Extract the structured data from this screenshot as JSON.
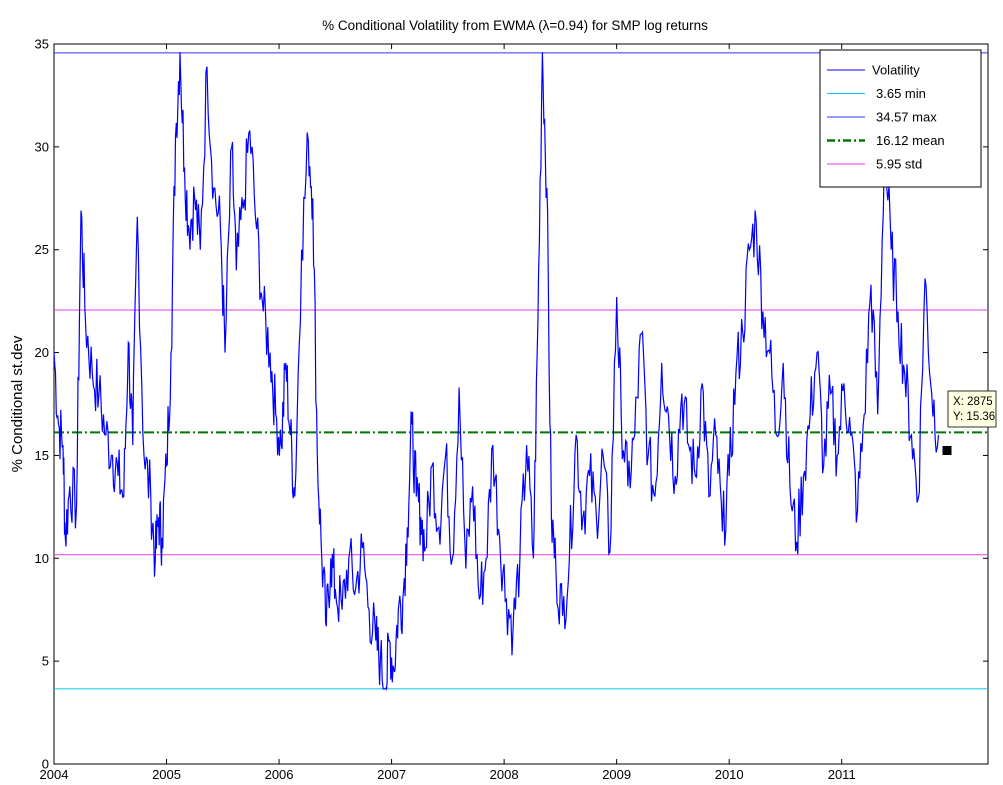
{
  "chart_data": {
    "type": "line",
    "title": "% Conditional Volatility from  EWMA (λ=0.94)  for SMP log returns",
    "xlabel": "",
    "ylabel": "%  Conditional st.dev",
    "x_range": [
      2004.0,
      2012.3
    ],
    "ylim": [
      0,
      35
    ],
    "x_ticks": [
      "2004",
      "2005",
      "2006",
      "2007",
      "2008",
      "2009",
      "2010",
      "2011"
    ],
    "y_ticks": [
      "0",
      "5",
      "10",
      "15",
      "20",
      "25",
      "30",
      "35"
    ],
    "grid": false,
    "legend_position": "top-right",
    "series": [
      {
        "name": "Volatility",
        "color": "#0000ff",
        "style": "solid",
        "x": [
          2004.0,
          2004.04,
          2004.08,
          2004.1,
          2004.14,
          2004.2,
          2004.24,
          2004.28,
          2004.34,
          2004.4,
          2004.46,
          2004.52,
          2004.57,
          2004.62,
          2004.66,
          2004.7,
          2004.74,
          2004.8,
          2004.86,
          2004.9,
          2004.93,
          2004.96,
          2005.0,
          2005.04,
          2005.08,
          2005.12,
          2005.16,
          2005.2,
          2005.25,
          2005.3,
          2005.36,
          2005.42,
          2005.48,
          2005.52,
          2005.58,
          2005.62,
          2005.68,
          2005.74,
          2005.8,
          2005.86,
          2005.92,
          2005.97,
          2006.02,
          2006.06,
          2006.1,
          2006.14,
          2006.2,
          2006.26,
          2006.3,
          2006.34,
          2006.38,
          2006.42,
          2006.46,
          2006.5,
          2006.56,
          2006.62,
          2006.68,
          2006.74,
          2006.8,
          2006.86,
          2006.9,
          2006.95,
          2006.98,
          2007.02,
          2007.06,
          2007.1,
          2007.14,
          2007.18,
          2007.22,
          2007.26,
          2007.3,
          2007.36,
          2007.42,
          2007.48,
          2007.54,
          2007.6,
          2007.66,
          2007.72,
          2007.78,
          2007.84,
          2007.9,
          2007.96,
          2008.02,
          2008.08,
          2008.14,
          2008.2,
          2008.26,
          2008.3,
          2008.34,
          2008.38,
          2008.42,
          2008.46,
          2008.52,
          2008.58,
          2008.64,
          2008.7,
          2008.76,
          2008.82,
          2008.88,
          2008.94,
          2009.0,
          2009.04,
          2009.1,
          2009.16,
          2009.22,
          2009.28,
          2009.34,
          2009.4,
          2009.46,
          2009.52,
          2009.58,
          2009.64,
          2009.7,
          2009.76,
          2009.82,
          2009.88,
          2009.94,
          2010.0,
          2010.06,
          2010.12,
          2010.18,
          2010.24,
          2010.3,
          2010.36,
          2010.42,
          2010.48,
          2010.54,
          2010.6,
          2010.66,
          2010.72,
          2010.78,
          2010.84,
          2010.9,
          2010.96,
          2011.02,
          2011.08,
          2011.14,
          2011.2,
          2011.26,
          2011.32,
          2011.38,
          2011.44,
          2011.5,
          2011.56,
          2011.62,
          2011.68,
          2011.74,
          2011.8,
          2011.86
        ],
        "y": [
          20.0,
          16.5,
          15.5,
          11.0,
          13.5,
          12.5,
          26.9,
          21.5,
          19.0,
          18.0,
          16.0,
          15.0,
          14.0,
          13.0,
          20.5,
          15.5,
          26.6,
          15.0,
          13.0,
          9.9,
          12.0,
          11.0,
          14.5,
          20.0,
          30.5,
          34.6,
          29.0,
          26.0,
          27.5,
          25.0,
          33.9,
          28.0,
          26.0,
          20.0,
          30.0,
          24.0,
          27.0,
          30.8,
          26.0,
          22.0,
          20.0,
          17.0,
          15.5,
          19.5,
          16.0,
          13.0,
          25.0,
          30.3,
          27.5,
          15.0,
          10.0,
          6.7,
          10.0,
          8.5,
          7.5,
          10.0,
          8.5,
          10.5,
          7.5,
          6.0,
          5.0,
          3.7,
          6.0,
          4.6,
          7.5,
          8.0,
          11.5,
          16.5,
          13.0,
          12.0,
          10.5,
          14.5,
          11.5,
          15.0,
          10.0,
          18.3,
          9.5,
          13.5,
          8.0,
          10.0,
          15.5,
          11.0,
          8.0,
          6.6,
          10.0,
          15.5,
          10.0,
          21.5,
          34.6,
          28.0,
          12.0,
          9.5,
          7.2,
          10.0,
          16.0,
          12.0,
          14.0,
          12.0,
          15.0,
          10.3,
          22.7,
          17.0,
          13.5,
          16.0,
          20.9,
          15.0,
          13.0,
          19.5,
          17.0,
          14.0,
          18.0,
          15.5,
          14.0,
          18.5,
          13.0,
          16.0,
          11.3,
          14.0,
          19.0,
          21.0,
          25.0,
          26.4,
          22.0,
          20.0,
          16.0,
          19.5,
          13.5,
          10.8,
          14.0,
          17.0,
          20.0,
          14.5,
          18.0,
          15.0,
          18.5,
          16.0,
          12.3,
          17.0,
          23.3,
          17.0,
          30.0,
          25.0,
          22.0,
          19.0,
          16.0,
          12.9,
          23.6,
          18.0,
          16.0
        ]
      },
      {
        "name": "3.65 min",
        "color": "#00c8e6",
        "style": "solid",
        "value": 3.65
      },
      {
        "name": "34.57 max",
        "color": "#3333ff",
        "style": "solid",
        "value": 34.57
      },
      {
        "name": "16.12 mean",
        "color": "#007700",
        "style": "dashdot",
        "value": 16.12
      },
      {
        "name": "5.95 std",
        "color": "#e23ee2",
        "style": "solid",
        "values": [
          10.17,
          22.07
        ]
      }
    ],
    "datatip": {
      "x_text": "X: 2875",
      "y_text": "Y: 15.36",
      "x": 2011.86,
      "y": 15.36
    }
  }
}
